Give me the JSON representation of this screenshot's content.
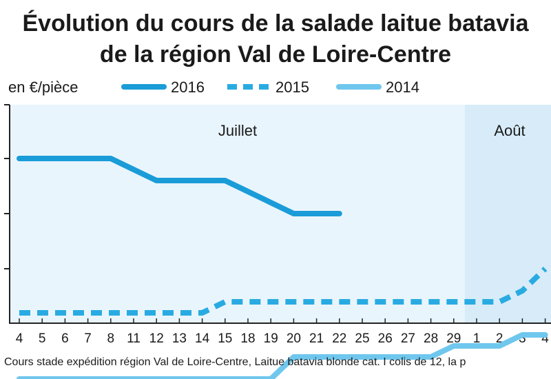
{
  "chart_data": {
    "type": "line",
    "title_line1": "Évolution du cours de la salade laitue batavia",
    "title_line2": "de la région Val de Loire-Centre",
    "unit_label": "en €/pièce",
    "months": [
      "Juillet",
      "Août"
    ],
    "x_labels": [
      "4",
      "5",
      "6",
      "7",
      "8",
      "11",
      "12",
      "13",
      "14",
      "15",
      "18",
      "19",
      "20",
      "21",
      "22",
      "25",
      "26",
      "27",
      "28",
      "29",
      "1",
      "2",
      "3",
      "4"
    ],
    "series": [
      {
        "name": "2016",
        "color": "#1a9cd8",
        "style": "solid",
        "values": [
          0.7,
          0.7,
          0.7,
          0.7,
          0.7,
          0.69,
          0.68,
          0.68,
          0.68,
          0.68,
          0.67,
          0.66,
          0.65,
          0.65,
          0.65
        ]
      },
      {
        "name": "2015",
        "color": "#29abe2",
        "style": "dashed",
        "values": [
          0.56,
          0.56,
          0.56,
          0.56,
          0.56,
          0.56,
          0.56,
          0.56,
          0.56,
          0.57,
          0.57,
          0.57,
          0.57,
          0.57,
          0.57,
          0.57,
          0.57,
          0.57,
          0.57,
          0.57,
          0.57,
          0.57,
          0.58,
          0.6
        ]
      },
      {
        "name": "2014",
        "color": "#6fc7ee",
        "style": "solid",
        "values": [
          0.5,
          0.5,
          0.5,
          0.5,
          0.5,
          0.5,
          0.5,
          0.5,
          0.5,
          0.5,
          0.5,
          0.5,
          0.52,
          0.52,
          0.52,
          0.52,
          0.52,
          0.52,
          0.52,
          0.53,
          0.53,
          0.53,
          0.54,
          0.54
        ]
      }
    ],
    "footnote": "Cours stade expédition région Val de Loire-Centre, Laitue batavia blonde cat. I colis de 12, la p",
    "colors": {
      "plot_background_july": "#e9f5fc",
      "plot_background_august": "#d7ecf8",
      "axis": "#222222"
    }
  }
}
